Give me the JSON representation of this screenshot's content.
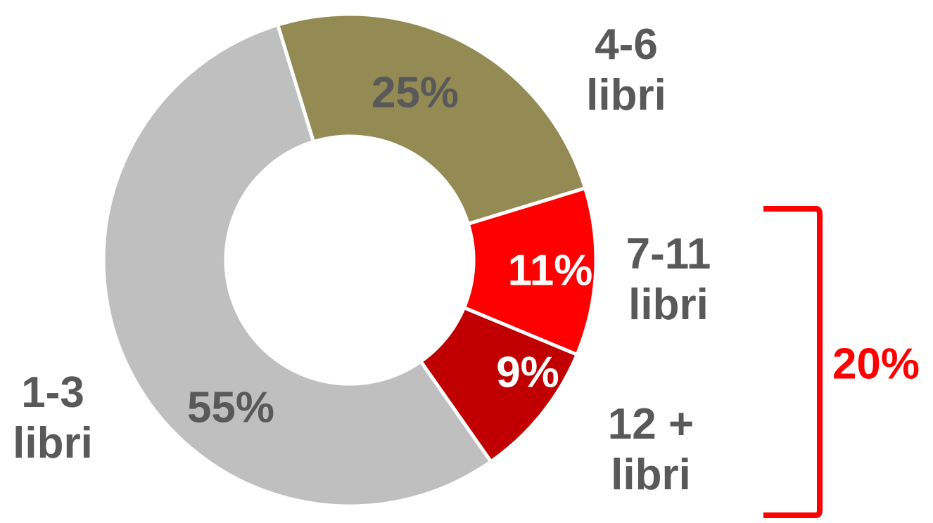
{
  "chart_data": {
    "type": "donut",
    "categories": [
      "4-6 libri",
      "7-11 libri",
      "12 + libri",
      "1-3 libri"
    ],
    "values": [
      25,
      11,
      9,
      55
    ],
    "value_labels": [
      "25%",
      "11%",
      "9%",
      "55%"
    ],
    "colors": [
      "#948a54",
      "#ff0000",
      "#c00000",
      "#bfbfbf"
    ],
    "annotation": "20%"
  }
}
